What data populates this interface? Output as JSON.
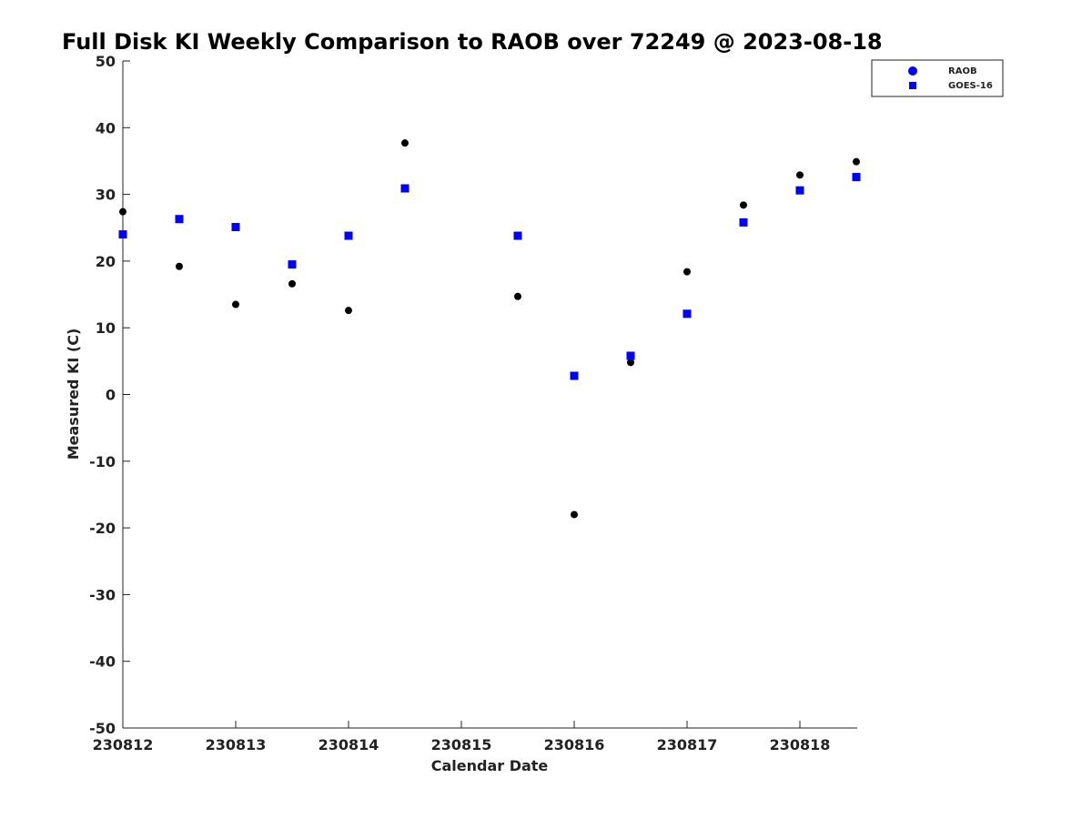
{
  "chart_data": {
    "type": "scatter",
    "title": "Full Disk KI Weekly Comparison to RAOB over 72249 @ 2023-08-18",
    "xlabel": "Calendar Date",
    "ylabel": "Measured KI (C)",
    "xlim": [
      "230812",
      "230818 12Z"
    ],
    "ylim": [
      -50,
      50
    ],
    "x_ticks": [
      "230812",
      "230813",
      "230814",
      "230815",
      "230816",
      "230817",
      "230818"
    ],
    "y_ticks": [
      "50",
      "40",
      "30",
      "20",
      "10",
      "0",
      "-10",
      "-20",
      "-30",
      "-40",
      "-50"
    ],
    "grid": false,
    "legend_position": "top-right",
    "x": [
      "230812 00Z",
      "230812 12Z",
      "230813 00Z",
      "230813 12Z",
      "230814 00Z",
      "230814 12Z",
      "230815 12Z",
      "230816 00Z",
      "230816 12Z",
      "230817 00Z",
      "230817 12Z",
      "230818 00Z",
      "230818 12Z"
    ],
    "series": [
      {
        "name": "RAOB",
        "marker": "circle",
        "color": "#000000",
        "legend_color": "#0000ff",
        "values": [
          27.4,
          19.2,
          13.5,
          16.6,
          12.6,
          37.7,
          14.7,
          -18.0,
          4.8,
          18.4,
          28.4,
          32.9,
          34.9
        ]
      },
      {
        "name": "GOES-16",
        "marker": "square",
        "color": "#0000ff",
        "legend_color": "#0000ff",
        "values": [
          24.0,
          26.3,
          25.1,
          19.5,
          23.8,
          30.9,
          23.8,
          2.8,
          5.8,
          12.1,
          25.8,
          30.6,
          32.6
        ]
      }
    ]
  }
}
